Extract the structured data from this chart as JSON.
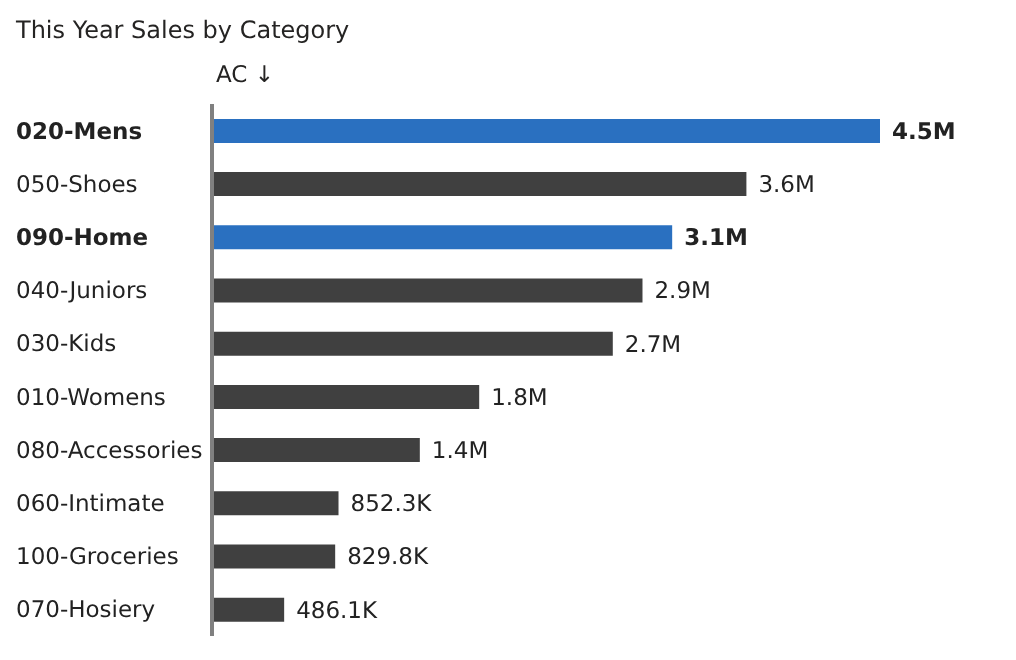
{
  "chart_data": {
    "type": "bar",
    "orientation": "horizontal",
    "title": "This Year Sales by Category",
    "xlabel": "AC ↓",
    "categories": [
      "020-Mens",
      "050-Shoes",
      "090-Home",
      "040-Juniors",
      "030-Kids",
      "010-Womens",
      "080-Accessories",
      "060-Intimate",
      "100-Groceries",
      "070-Hosiery"
    ],
    "values": [
      4500000,
      3600000,
      3100000,
      2900000,
      2700000,
      1800000,
      1400000,
      852300,
      829800,
      486100
    ],
    "value_labels": [
      "4.5M",
      "3.6M",
      "3.1M",
      "2.9M",
      "2.7M",
      "1.8M",
      "1.4M",
      "852.3K",
      "829.8K",
      "486.1K"
    ],
    "colors": [
      "#2a70c0",
      "#404040",
      "#2a70c0",
      "#404040",
      "#404040",
      "#404040",
      "#404040",
      "#404040",
      "#404040",
      "#404040"
    ]
  }
}
